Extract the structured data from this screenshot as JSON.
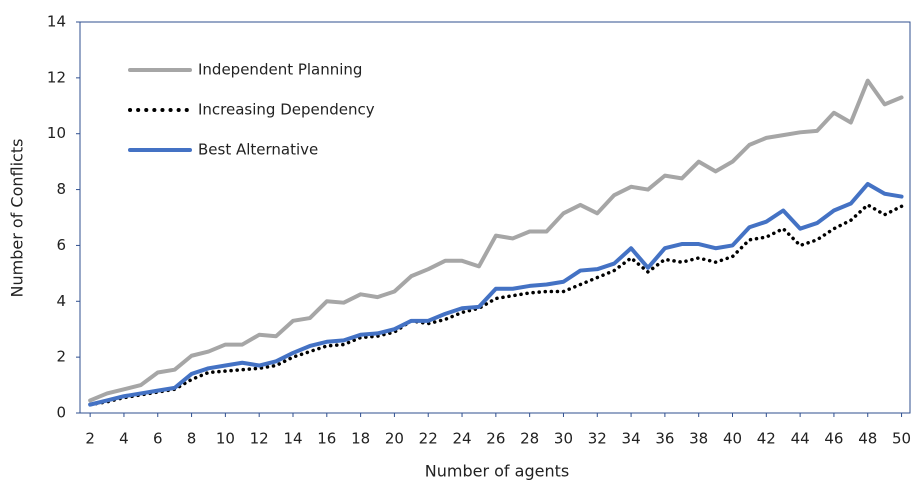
{
  "chart_data": {
    "type": "line",
    "x_label": "Number of agents",
    "y_label": "Number of  Conflicts",
    "x": [
      2,
      3,
      4,
      5,
      6,
      7,
      8,
      9,
      10,
      11,
      12,
      13,
      14,
      15,
      16,
      17,
      18,
      19,
      20,
      21,
      22,
      23,
      24,
      25,
      26,
      27,
      28,
      29,
      30,
      31,
      32,
      33,
      34,
      35,
      36,
      37,
      38,
      39,
      40,
      41,
      42,
      43,
      44,
      45,
      46,
      47,
      48,
      49,
      50
    ],
    "series": [
      {
        "name": "Independent Planning",
        "color": "#a6a6a6",
        "dash": "solid",
        "values": [
          0.45,
          0.7,
          0.85,
          1.0,
          1.45,
          1.55,
          2.05,
          2.2,
          2.45,
          2.45,
          2.8,
          2.75,
          3.3,
          3.4,
          4.0,
          3.95,
          4.25,
          4.15,
          4.35,
          4.9,
          5.15,
          5.45,
          5.45,
          5.25,
          6.35,
          6.25,
          6.5,
          6.5,
          7.15,
          7.45,
          7.15,
          7.8,
          8.1,
          8.0,
          8.5,
          8.4,
          9.0,
          8.65,
          9.0,
          9.6,
          9.85,
          9.95,
          10.05,
          10.1,
          10.75,
          10.4,
          11.9,
          11.05,
          11.3
        ]
      },
      {
        "name": "Increasing Dependency",
        "color": "#000000",
        "dash": "dotted",
        "values": [
          0.3,
          0.4,
          0.55,
          0.65,
          0.75,
          0.85,
          1.2,
          1.45,
          1.5,
          1.55,
          1.6,
          1.7,
          2.0,
          2.2,
          2.4,
          2.45,
          2.7,
          2.75,
          2.9,
          3.3,
          3.2,
          3.35,
          3.6,
          3.75,
          4.1,
          4.2,
          4.3,
          4.35,
          4.35,
          4.6,
          4.85,
          5.1,
          5.55,
          5.05,
          5.5,
          5.4,
          5.55,
          5.4,
          5.6,
          6.2,
          6.3,
          6.6,
          6.0,
          6.2,
          6.6,
          6.9,
          7.45,
          7.1,
          7.4
        ]
      },
      {
        "name": "Best Alternative",
        "color": "#4472c4",
        "dash": "solid",
        "values": [
          0.3,
          0.45,
          0.6,
          0.7,
          0.8,
          0.9,
          1.4,
          1.6,
          1.7,
          1.8,
          1.7,
          1.85,
          2.15,
          2.4,
          2.55,
          2.6,
          2.8,
          2.85,
          3.0,
          3.3,
          3.3,
          3.55,
          3.75,
          3.8,
          4.45,
          4.45,
          4.55,
          4.6,
          4.7,
          5.1,
          5.15,
          5.35,
          5.9,
          5.2,
          5.9,
          6.05,
          6.05,
          5.9,
          6.0,
          6.65,
          6.85,
          7.25,
          6.6,
          6.8,
          7.25,
          7.5,
          8.2,
          7.85,
          7.75
        ]
      }
    ],
    "xlim": [
      1.4,
      50.5
    ],
    "xticks": [
      2,
      4,
      6,
      8,
      10,
      12,
      14,
      16,
      18,
      20,
      22,
      24,
      26,
      28,
      30,
      32,
      34,
      36,
      38,
      40,
      42,
      44,
      46,
      48,
      50
    ],
    "ylim": [
      0,
      14
    ],
    "yticks": [
      0,
      2,
      4,
      6,
      8,
      10,
      12,
      14
    ],
    "legend": "top-left"
  }
}
